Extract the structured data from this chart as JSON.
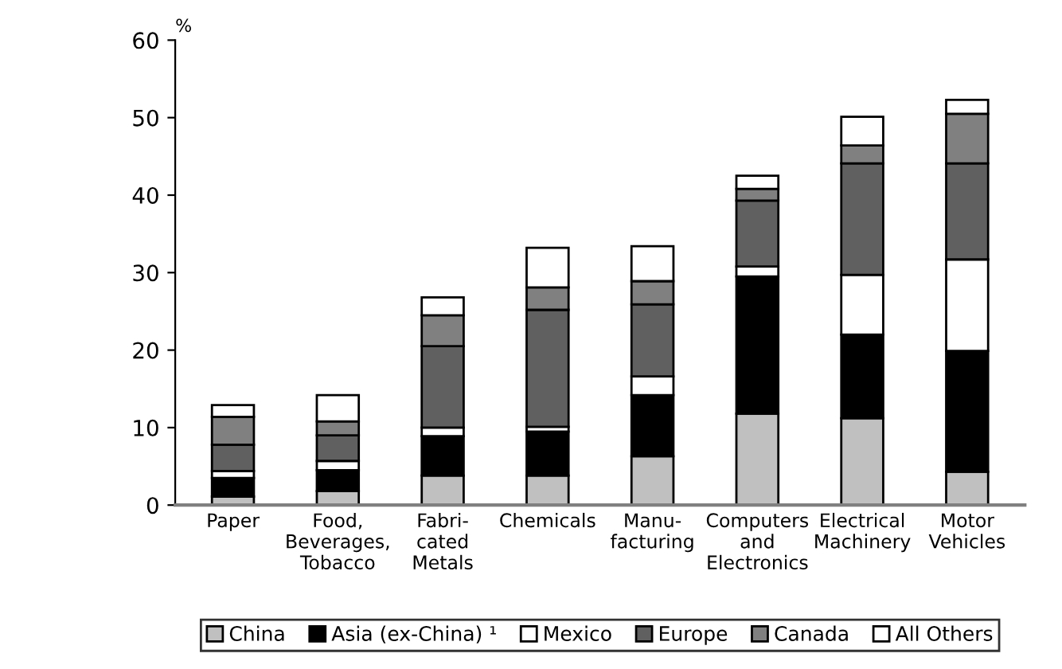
{
  "chart_data": {
    "type": "bar",
    "stacked": true,
    "ylabel": "%",
    "ylim": [
      0,
      60
    ],
    "yticks": [
      0,
      10,
      20,
      30,
      40,
      50,
      60
    ],
    "grid": false,
    "legend": "bottom",
    "categories": [
      "Paper",
      "Food,\nBeverages,\nTobacco",
      "Fabri-\ncated\nMetals",
      "Chemicals",
      "Manu-\nfacturing",
      "Computers\nand\nElectronics",
      "Electrical\nMachinery",
      "Motor\nVehicles"
    ],
    "series": [
      {
        "name": "China",
        "color": "#c0c0c0",
        "values": [
          1.1,
          1.8,
          3.8,
          3.8,
          6.3,
          11.8,
          11.2,
          4.3
        ]
      },
      {
        "name": "Asia (ex-China) ¹",
        "color": "#000000",
        "values": [
          2.4,
          2.7,
          5.1,
          5.7,
          7.9,
          17.7,
          10.8,
          15.6
        ]
      },
      {
        "name": "Mexico",
        "color": "#ffffff",
        "values": [
          0.9,
          1.2,
          1.1,
          0.6,
          2.4,
          1.3,
          7.7,
          11.8
        ]
      },
      {
        "name": "Europe",
        "color": "#606060",
        "values": [
          3.4,
          3.3,
          10.5,
          15.1,
          9.3,
          8.5,
          14.4,
          12.4
        ]
      },
      {
        "name": "Canada",
        "color": "#808080",
        "values": [
          3.6,
          1.8,
          4.0,
          2.9,
          3.0,
          1.5,
          2.3,
          6.4
        ]
      },
      {
        "name": "All Others",
        "color": "#ffffff",
        "values": [
          1.5,
          3.4,
          2.3,
          5.1,
          4.5,
          1.7,
          3.7,
          1.8
        ]
      }
    ]
  }
}
